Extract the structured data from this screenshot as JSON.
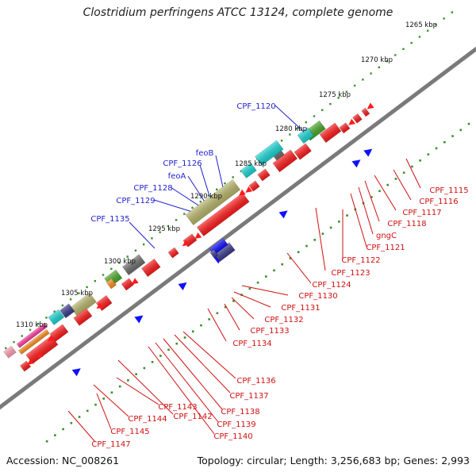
{
  "title": "Clostridium perfringens ATCC 13124, complete genome",
  "accession": "Accession: NC_008261",
  "summary": "Topology: circular; Length: 3,256,683 bp; Genes: 2,993",
  "colors": {
    "backbone": "#7a7a7a",
    "ruler": "#3b8f2a",
    "forward_label": "#1f1fd0",
    "reverse_label": "#d01010",
    "cds": "#ff1a1a",
    "cds_cyan": "#19d5d5",
    "cds_navy": "#3a3a8c",
    "cds_gray": "#6d6d6d",
    "cds_olive": "#b8b66a",
    "cds_green": "#4aa829",
    "cds_orange": "#ff8c1a",
    "cds_magenta": "#ff3aa0",
    "cds_pink": "#ff9fb0",
    "fwd_blue": "#1010ff"
  },
  "ruler_ticks": [
    "1265 kbp",
    "1270 kbp",
    "1275 kbp",
    "1280 kbp",
    "1285 kbp",
    "1290 kbp",
    "1295 kbp",
    "1300 kbp",
    "1305 kbp",
    "1310 kbp"
  ],
  "forward_labels": [
    "CPF_1120",
    "feoB",
    "CPF_1126",
    "feoA",
    "CPF_1128",
    "CPF_1129",
    "CPF_1135"
  ],
  "reverse_labels": [
    "CPF_1115",
    "CPF_1116",
    "CPF_1117",
    "CPF_1118",
    "gngC",
    "CPF_1121",
    "CPF_1122",
    "CPF_1123",
    "CPF_1124",
    "CPF_1130",
    "CPF_1131",
    "CPF_1132",
    "CPF_1133",
    "CPF_1134",
    "CPF_1136",
    "CPF_1137",
    "CPF_1138",
    "CPF_1139",
    "CPF_1140",
    "CPF_1142",
    "CPF_1143",
    "CPF_1144",
    "CPF_1145",
    "CPF_1147"
  ]
}
